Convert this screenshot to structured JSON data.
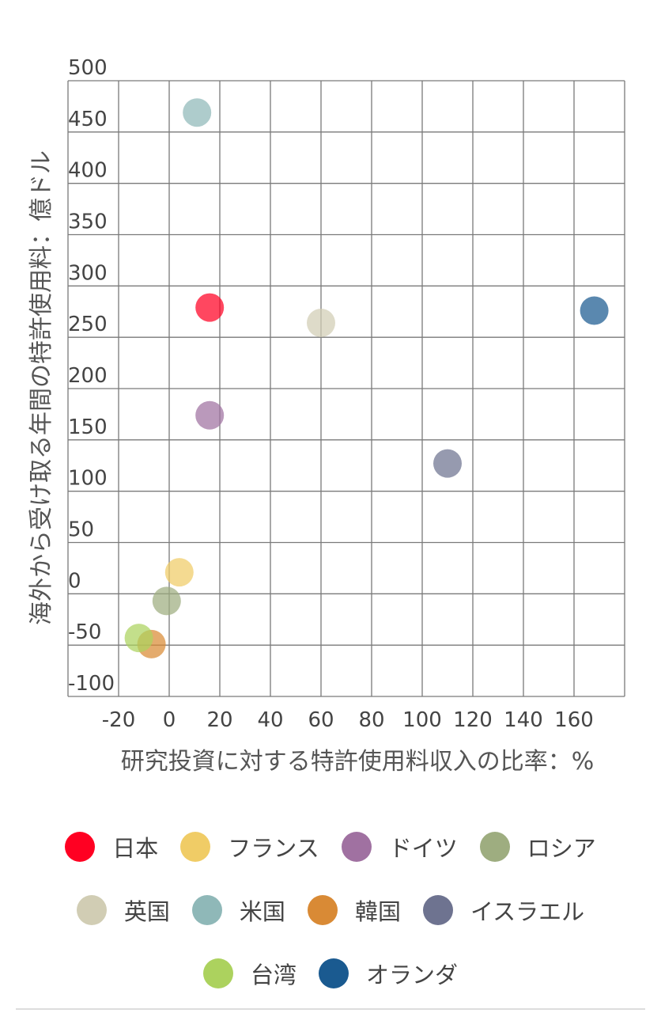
{
  "chart_data": {
    "type": "scatter",
    "title": "",
    "xlabel": "研究投資に対する特許使用料収入の比率：%",
    "ylabel": "海外から受け取る年間の特許使用料：億ドル",
    "xlim": [
      -40,
      180
    ],
    "ylim": [
      -100,
      500
    ],
    "x_ticks": [
      -20,
      0,
      20,
      40,
      60,
      80,
      100,
      120,
      140,
      160
    ],
    "y_ticks": [
      500,
      450,
      400,
      350,
      300,
      250,
      200,
      150,
      100,
      50,
      0,
      -50,
      -100
    ],
    "grid": true,
    "legend_position": "bottom",
    "series": [
      {
        "name": "日本",
        "color": "#ff0022",
        "x": 16,
        "y": 279
      },
      {
        "name": "フランス",
        "color": "#f0cc66",
        "x": 4,
        "y": 21
      },
      {
        "name": "ドイツ",
        "color": "#a071a1",
        "x": 16,
        "y": 174
      },
      {
        "name": "ロシア",
        "color": "#9ead80",
        "x": -1,
        "y": -7
      },
      {
        "name": "英国",
        "color": "#d1cdb4",
        "x": 60,
        "y": 264
      },
      {
        "name": "米国",
        "color": "#8fb8b8",
        "x": 11,
        "y": 469
      },
      {
        "name": "韓国",
        "color": "#d98a35",
        "x": -7,
        "y": -49
      },
      {
        "name": "イスラエル",
        "color": "#6e7390",
        "x": 110,
        "y": 127
      },
      {
        "name": "台湾",
        "color": "#acd25e",
        "x": -12,
        "y": -43
      },
      {
        "name": "オランダ",
        "color": "#1a5a90",
        "x": 168,
        "y": 276
      }
    ]
  },
  "legend_rows": [
    [
      0,
      1,
      2,
      3
    ],
    [
      4,
      5,
      6,
      7
    ],
    [
      8,
      9
    ]
  ]
}
